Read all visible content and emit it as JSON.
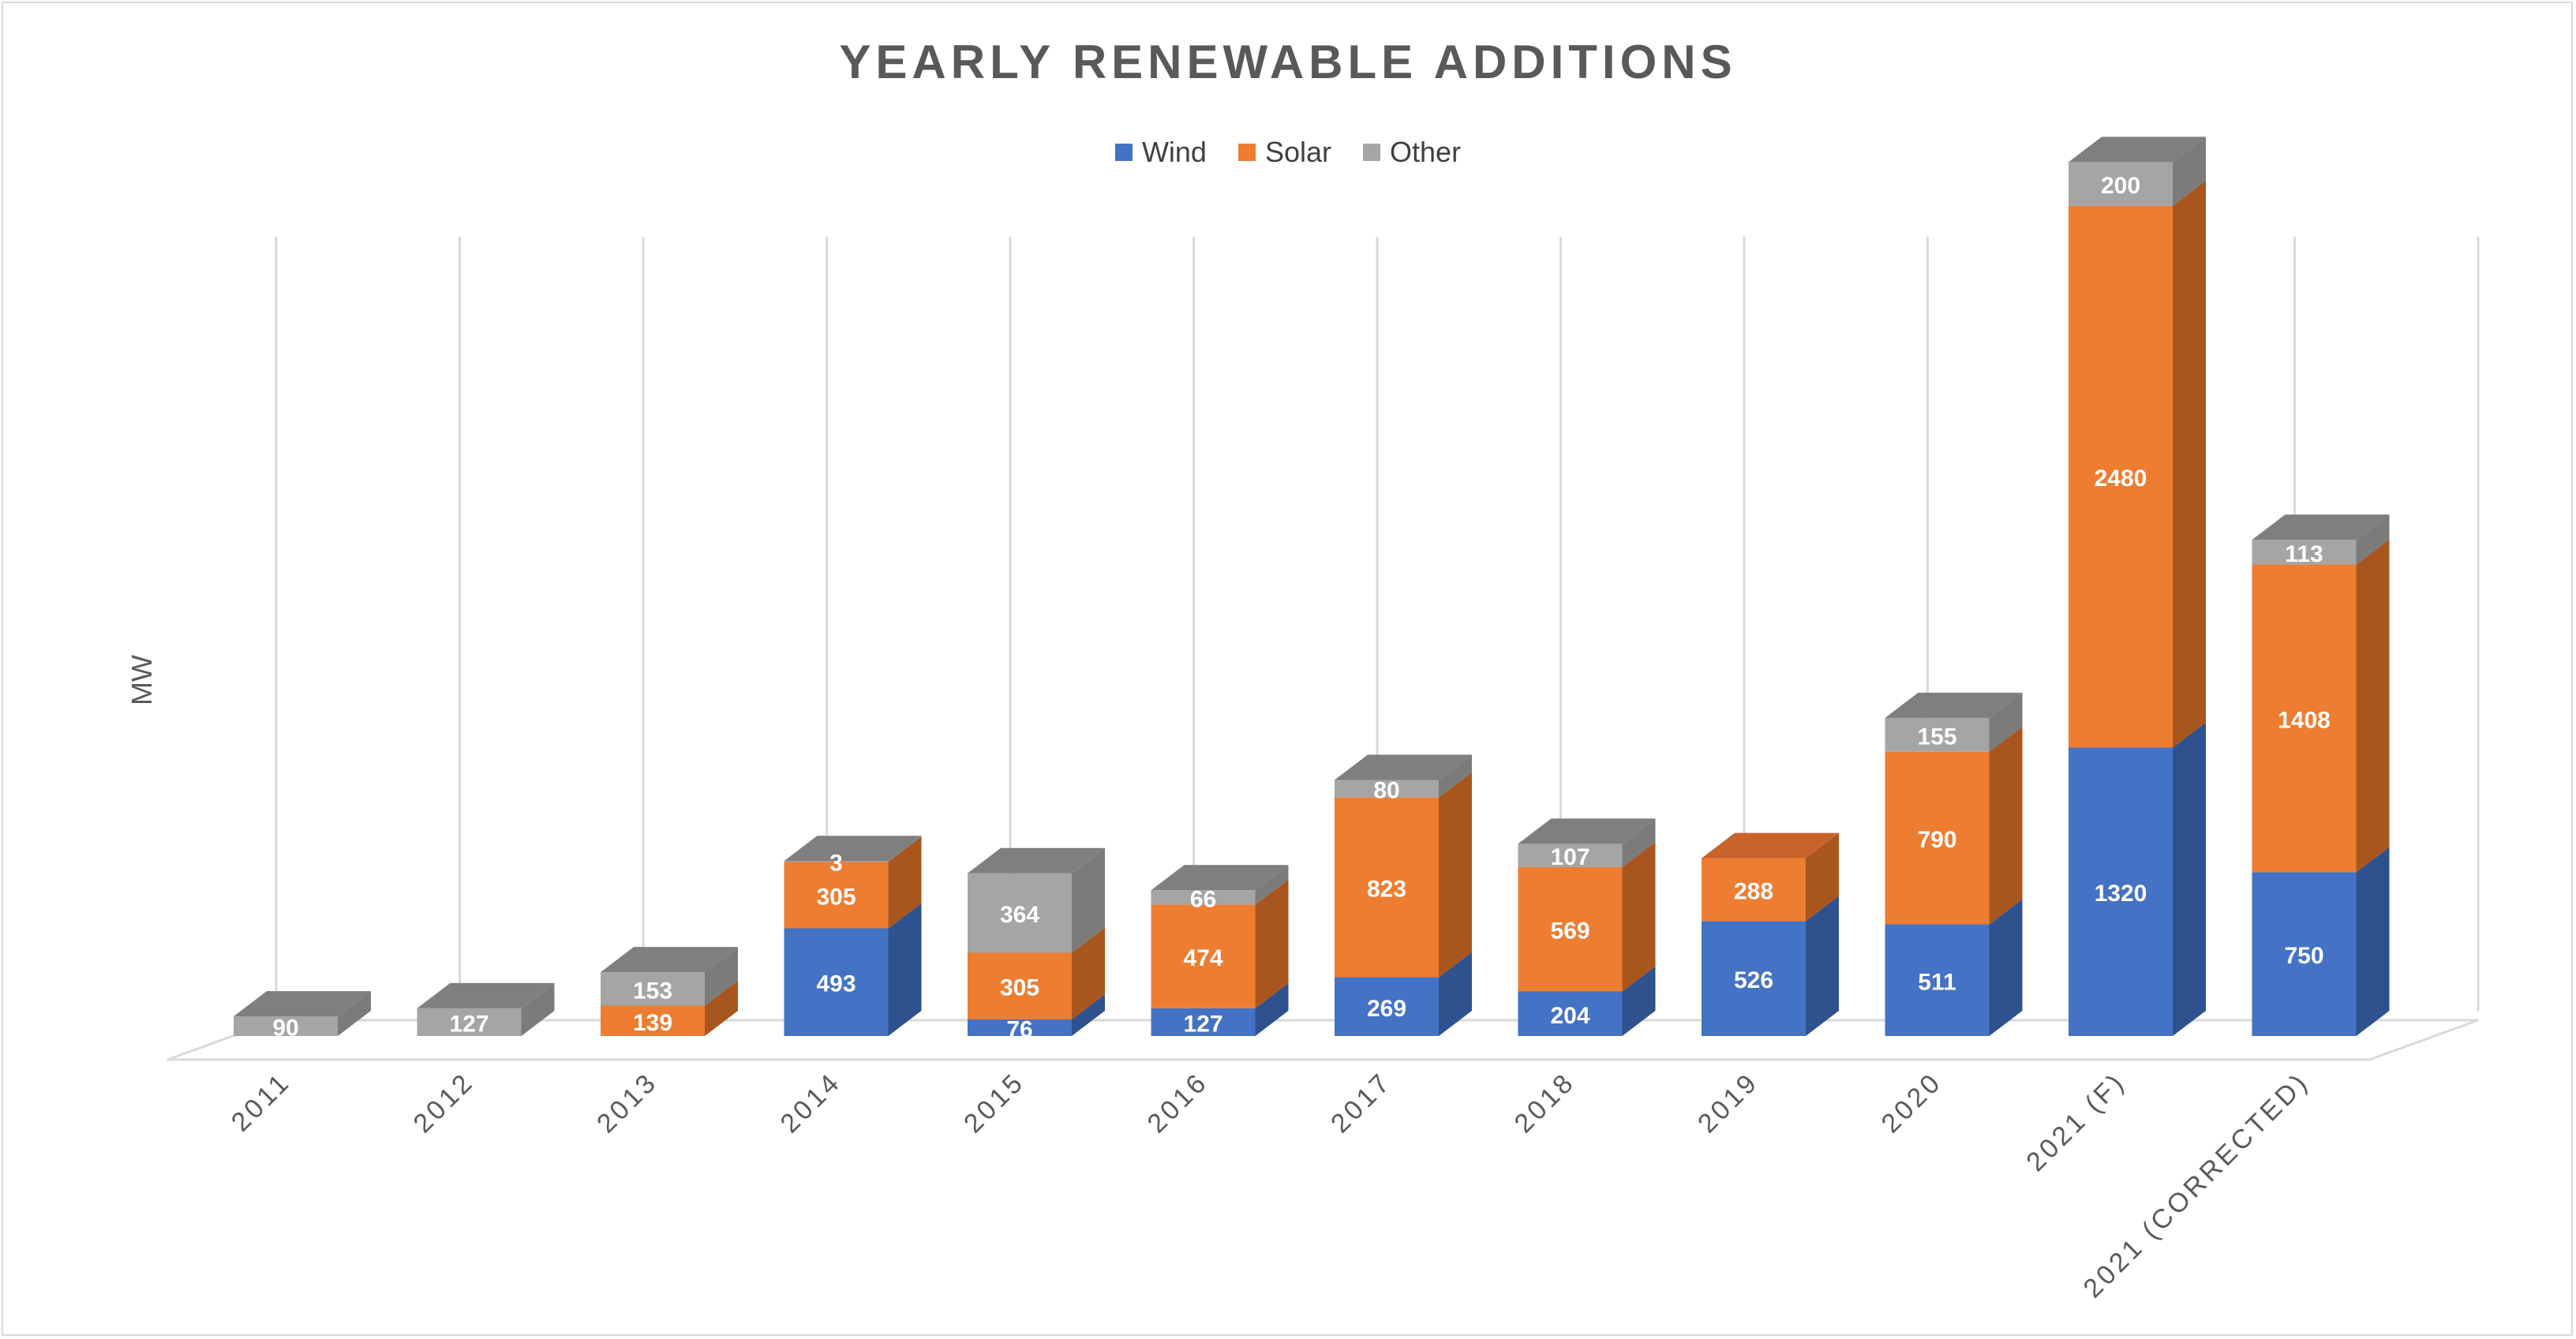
{
  "chart_data": {
    "type": "bar",
    "subtype": "stacked-3d",
    "title": "YEARLY RENEWABLE ADDITIONS",
    "xlabel": "",
    "ylabel": "MW",
    "ylim": [
      0,
      4000
    ],
    "grid": true,
    "legend_position": "top",
    "categories": [
      "2011",
      "2012",
      "2013",
      "2014",
      "2015",
      "2016",
      "2017",
      "2018",
      "2019",
      "2020",
      "2021 (F)",
      "2021 (CORRECTED)"
    ],
    "series": [
      {
        "name": "Wind",
        "color": "#4472c4",
        "side": "#2f528f",
        "top": "#3960a8",
        "values": [
          0,
          0,
          0,
          493,
          76,
          127,
          269,
          204,
          526,
          511,
          1320,
          750
        ]
      },
      {
        "name": "Solar",
        "color": "#ed7d31",
        "side": "#a9561e",
        "top": "#c8632a",
        "values": [
          0,
          0,
          139,
          305,
          305,
          474,
          823,
          569,
          288,
          790,
          2480,
          1408
        ]
      },
      {
        "name": "Other",
        "color": "#a5a5a5",
        "side": "#7b7b7b",
        "top": "#8a8a8a",
        "values": [
          90,
          127,
          153,
          3,
          364,
          66,
          80,
          107,
          0,
          155,
          200,
          113
        ]
      }
    ]
  }
}
